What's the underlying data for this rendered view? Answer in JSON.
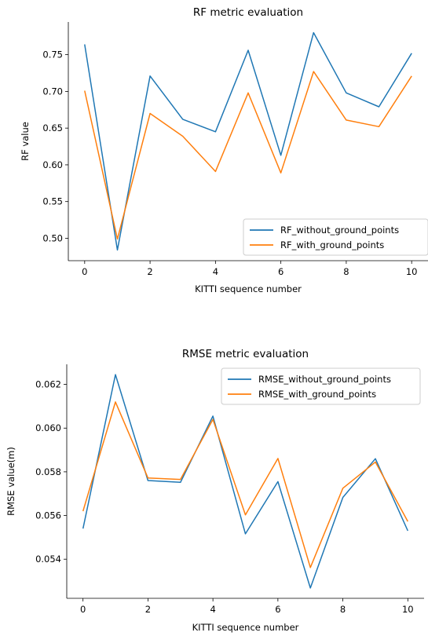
{
  "colors": {
    "without": "#1f77b4",
    "with": "#ff7f0e"
  },
  "chart_data": [
    {
      "type": "line",
      "title": "RF metric evaluation",
      "xlabel": "KITTI sequence number",
      "ylabel": "RF value",
      "x": [
        0,
        1,
        2,
        3,
        4,
        5,
        6,
        7,
        8,
        9,
        10
      ],
      "xticks": [
        "0",
        "2",
        "4",
        "6",
        "8",
        "10"
      ],
      "yticks": [
        "0.50",
        "0.55",
        "0.60",
        "0.65",
        "0.70",
        "0.75"
      ],
      "xlim": [
        -0.5,
        10.5
      ],
      "ylim": [
        0.4695,
        0.7945
      ],
      "legend_position": "lower right",
      "series": [
        {
          "name": "RF_without_ground_points",
          "color": "#1f77b4",
          "values": [
            0.764,
            0.484,
            0.721,
            0.662,
            0.645,
            0.756,
            0.613,
            0.78,
            0.698,
            0.679,
            0.752
          ]
        },
        {
          "name": "RF_with_ground_points",
          "color": "#ff7f0e",
          "values": [
            0.701,
            0.499,
            0.67,
            0.639,
            0.591,
            0.698,
            0.589,
            0.727,
            0.661,
            0.652,
            0.721
          ]
        }
      ]
    },
    {
      "type": "line",
      "title": "RMSE metric evaluation",
      "xlabel": "KITTI sequence number",
      "ylabel": "RMSE value(m)",
      "x": [
        0,
        1,
        2,
        3,
        4,
        5,
        6,
        7,
        8,
        9,
        10
      ],
      "xticks": [
        "0",
        "2",
        "4",
        "6",
        "8",
        "10"
      ],
      "yticks": [
        "0.054",
        "0.056",
        "0.058",
        "0.060",
        "0.062"
      ],
      "xlim": [
        -0.5,
        10.5
      ],
      "ylim": [
        0.05221,
        0.06292
      ],
      "legend_position": "upper right",
      "series": [
        {
          "name": "RMSE_without_ground_points",
          "color": "#1f77b4",
          "values": [
            0.0554,
            0.06245,
            0.0576,
            0.05752,
            0.06055,
            0.05516,
            0.05755,
            0.05268,
            0.05683,
            0.0586,
            0.0553
          ]
        },
        {
          "name": "RMSE_with_ground_points",
          "color": "#ff7f0e",
          "values": [
            0.0562,
            0.0612,
            0.05772,
            0.05765,
            0.0604,
            0.05603,
            0.05861,
            0.05362,
            0.05725,
            0.05845,
            0.05573
          ]
        }
      ]
    }
  ]
}
